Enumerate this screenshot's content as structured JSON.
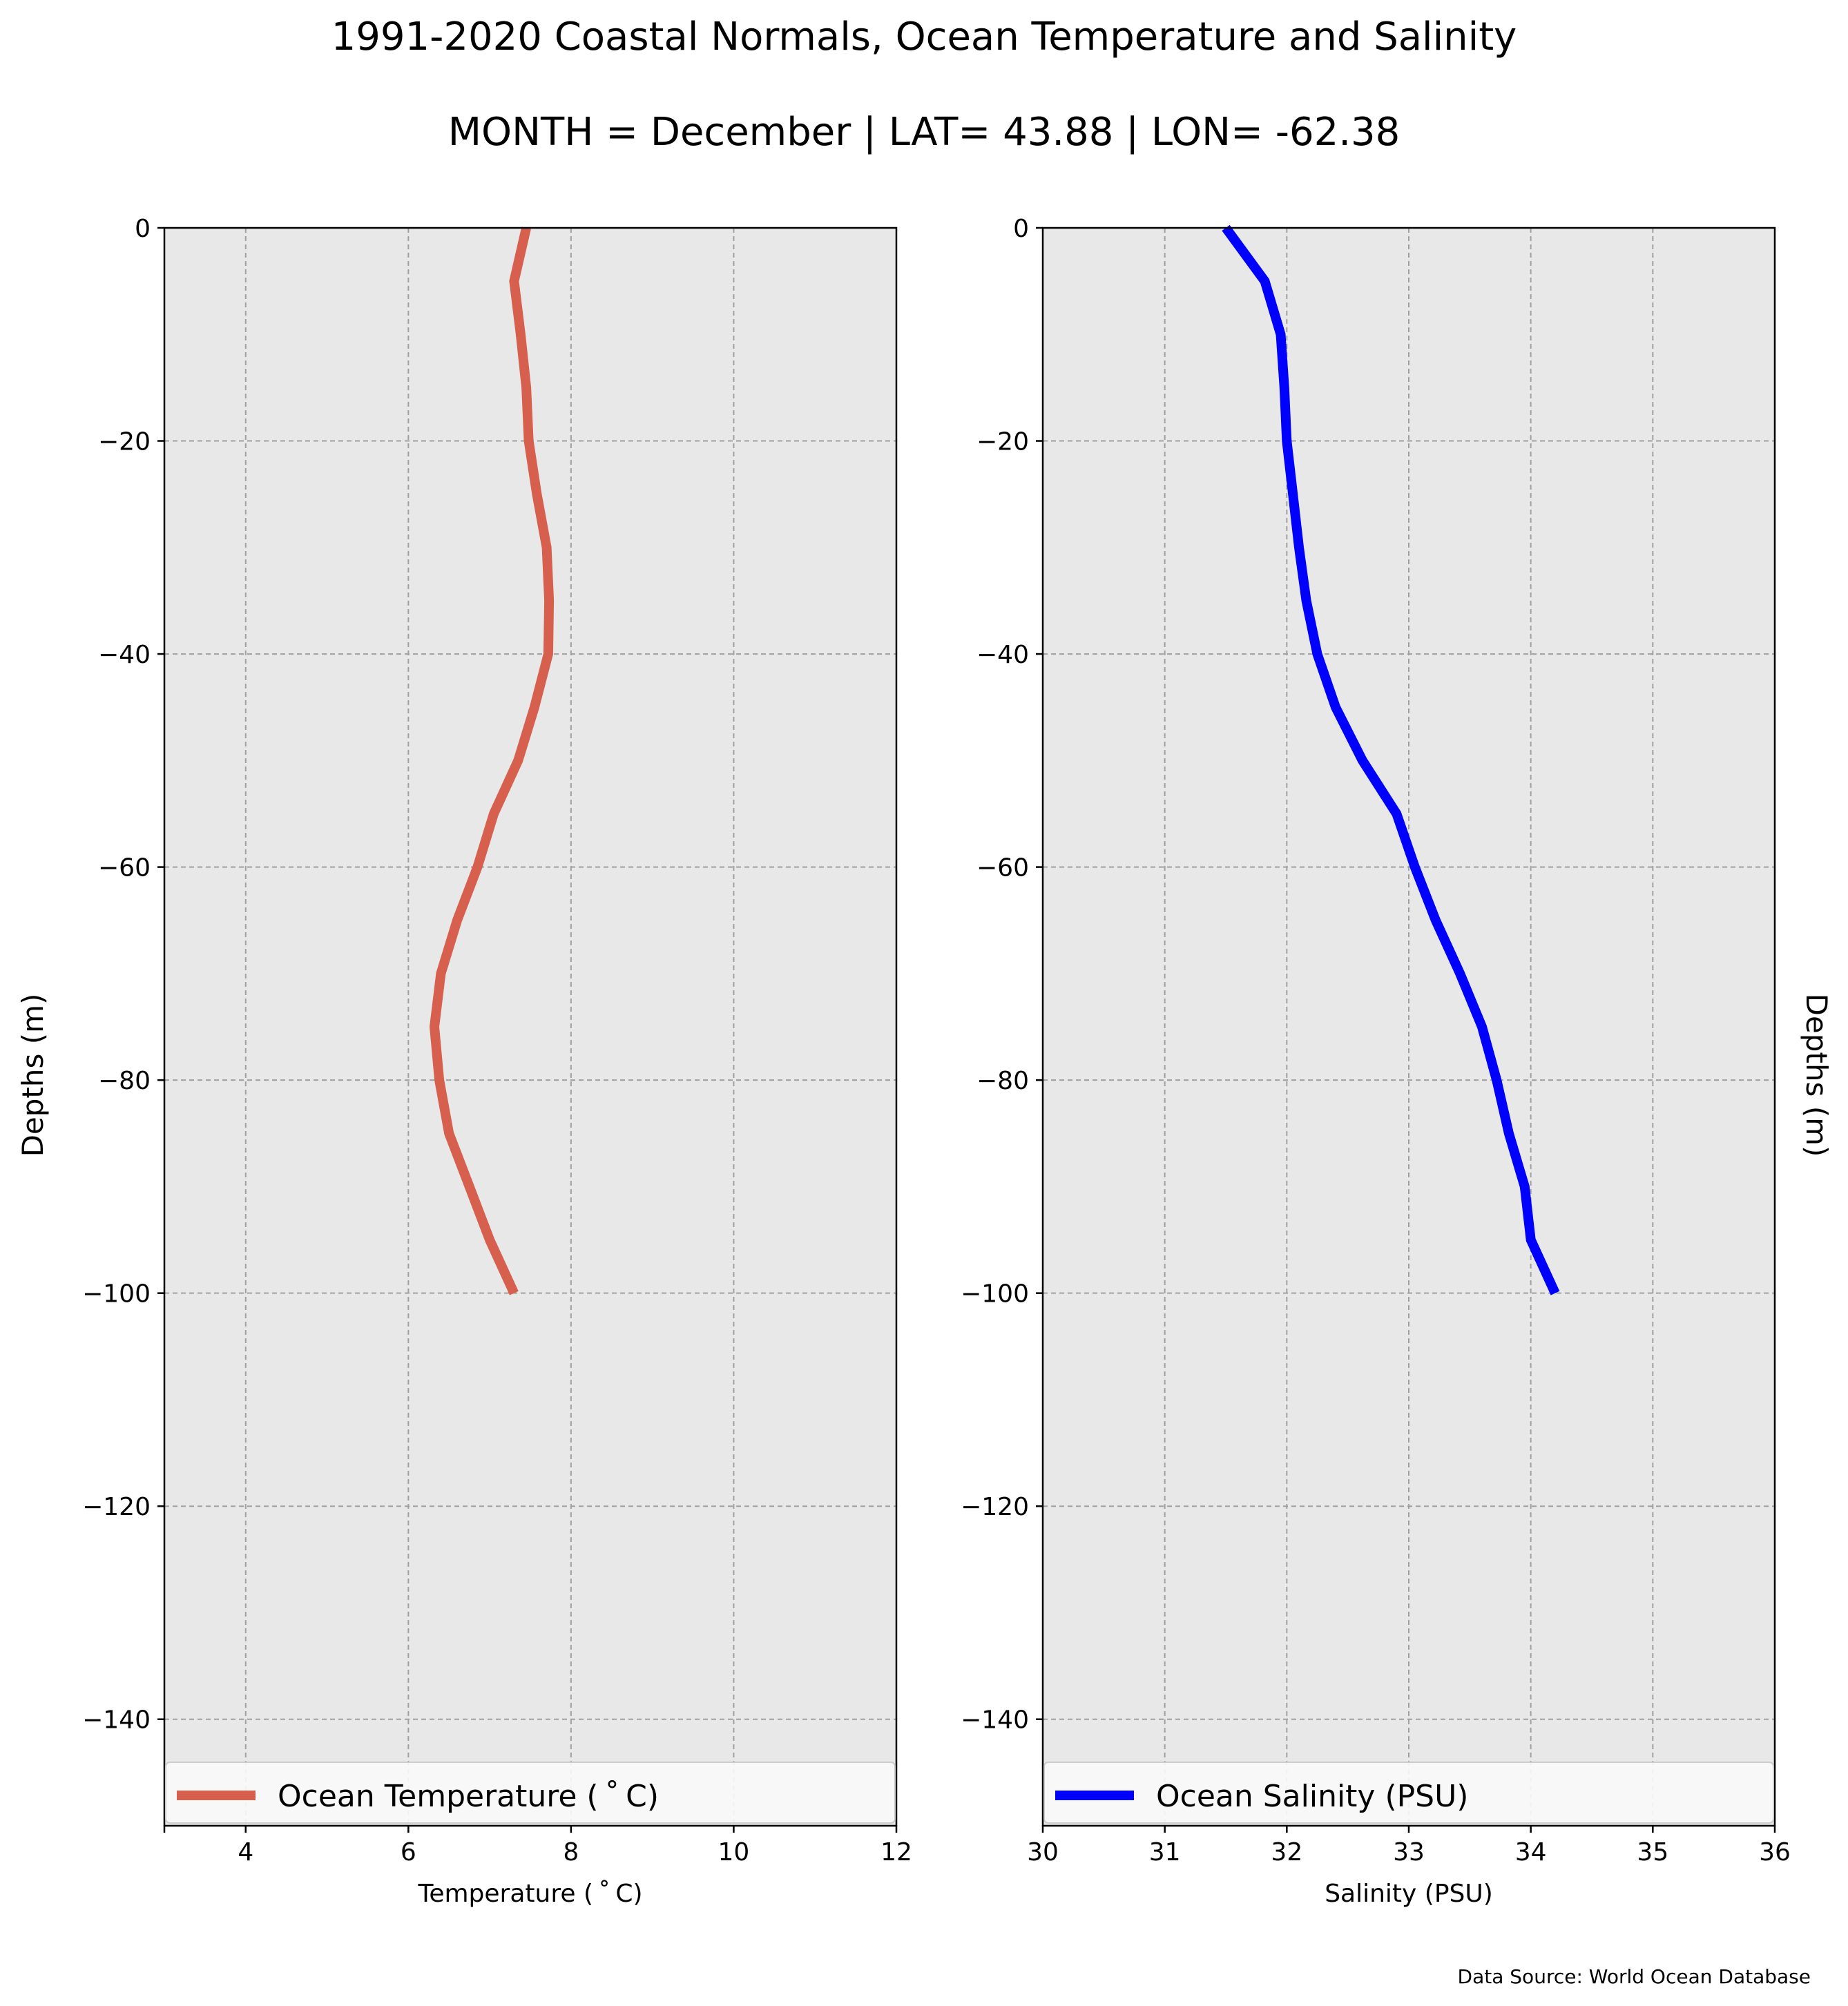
{
  "figure": {
    "title_line1": "1991-2020 Coastal Normals, Ocean Temperature and Salinity",
    "title_line2": "MONTH = December | LAT= 43.88 | LON= -62.38",
    "source_note": "Data Source: World Ocean Database"
  },
  "chart_data": [
    {
      "type": "line",
      "panel": "left",
      "xlabel": "Temperature ($^\\circ$C)",
      "xlabel_display": "Temperature ( ˚ C)",
      "ylabel": "Depths (m)",
      "ylabel_side": "left",
      "xlim": [
        3,
        12
      ],
      "ylim": [
        -150,
        0
      ],
      "xticks": [
        4,
        6,
        8,
        10,
        12
      ],
      "xtick_labels": [
        "4",
        "6",
        "8",
        "10",
        "12"
      ],
      "yticks": [
        0,
        -20,
        -40,
        -60,
        -80,
        -100,
        -120,
        -140
      ],
      "ytick_labels": [
        "0",
        "−20",
        "−40",
        "−60",
        "−80",
        "−100",
        "−120",
        "−140"
      ],
      "grid": true,
      "background": "#e8e8e8",
      "legend_placement": "bottom",
      "series": [
        {
          "name": "Ocean Temperature ( ˚ C)",
          "color": "#d6604d",
          "x": [
            7.45,
            7.3,
            7.38,
            7.45,
            7.48,
            7.58,
            7.7,
            7.73,
            7.72,
            7.55,
            7.35,
            7.05,
            6.85,
            6.6,
            6.4,
            6.32,
            6.38,
            6.5,
            6.75,
            7.0,
            7.3
          ],
          "y": [
            0,
            -5,
            -10,
            -15,
            -20,
            -25,
            -30,
            -35,
            -40,
            -45,
            -50,
            -55,
            -60,
            -65,
            -70,
            -75,
            -80,
            -85,
            -90,
            -95,
            -100
          ]
        }
      ]
    },
    {
      "type": "line",
      "panel": "right",
      "xlabel": "Salinity (PSU)",
      "ylabel": "Depths (m)",
      "ylabel_side": "right",
      "xlim": [
        30,
        36
      ],
      "ylim": [
        -150,
        0
      ],
      "xticks": [
        30,
        31,
        32,
        33,
        34,
        35,
        36
      ],
      "xtick_labels": [
        "30",
        "31",
        "32",
        "33",
        "34",
        "35",
        "36"
      ],
      "yticks": [
        0,
        -20,
        -40,
        -60,
        -80,
        -100,
        -120,
        -140
      ],
      "ytick_labels": [
        "0",
        "−20",
        "−40",
        "−60",
        "−80",
        "−100",
        "−120",
        "−140"
      ],
      "grid": true,
      "background": "#e8e8e8",
      "legend_placement": "bottom",
      "series": [
        {
          "name": "Ocean Salinity (PSU)",
          "color": "#0000ff",
          "x": [
            31.5,
            31.82,
            31.95,
            31.98,
            32.0,
            32.05,
            32.1,
            32.16,
            32.25,
            32.4,
            32.62,
            32.9,
            33.05,
            33.22,
            33.42,
            33.6,
            33.72,
            33.82,
            33.95,
            34.0,
            34.2
          ],
          "y": [
            0,
            -5,
            -10,
            -15,
            -20,
            -25,
            -30,
            -35,
            -40,
            -45,
            -50,
            -55,
            -60,
            -65,
            -70,
            -75,
            -80,
            -85,
            -90,
            -95,
            -100
          ]
        }
      ]
    }
  ]
}
